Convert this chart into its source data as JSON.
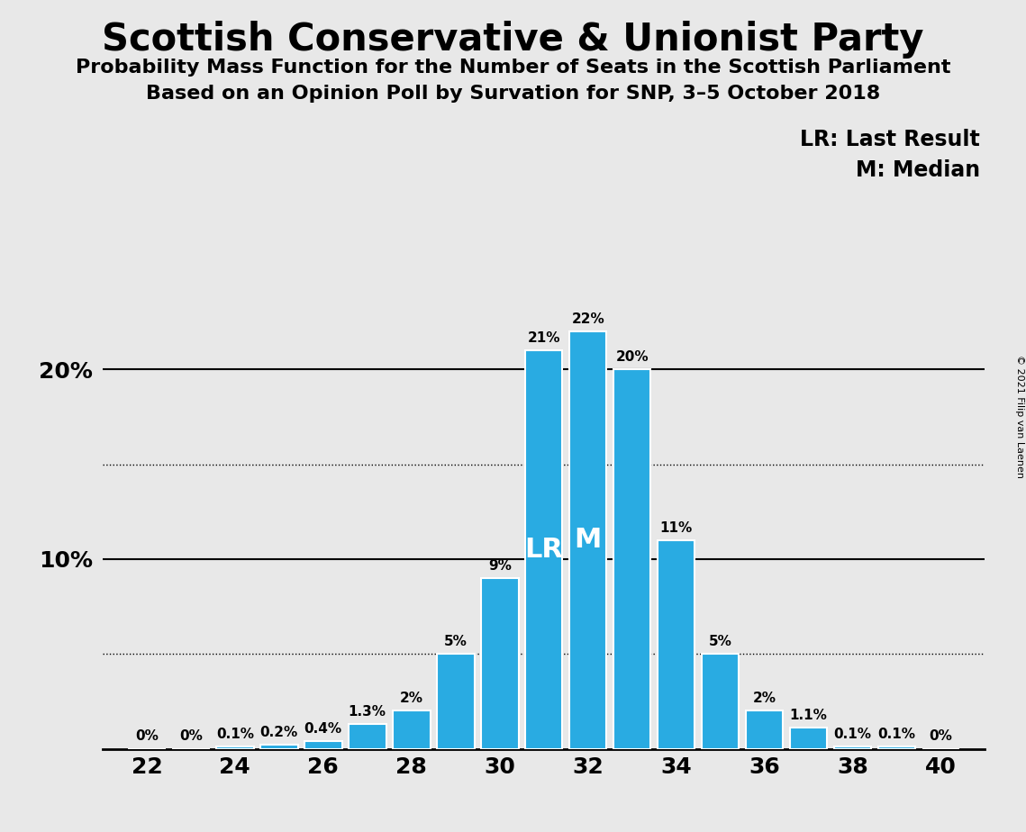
{
  "title": "Scottish Conservative & Unionist Party",
  "subtitle1": "Probability Mass Function for the Number of Seats in the Scottish Parliament",
  "subtitle2": "Based on an Opinion Poll by Survation for SNP, 3–5 October 2018",
  "copyright": "© 2021 Filip van Laenen",
  "seats": [
    22,
    23,
    24,
    25,
    26,
    27,
    28,
    29,
    30,
    31,
    32,
    33,
    34,
    35,
    36,
    37,
    38,
    39,
    40
  ],
  "values": [
    0.0,
    0.0,
    0.1,
    0.2,
    0.4,
    1.3,
    2.0,
    5.0,
    9.0,
    21.0,
    22.0,
    20.0,
    11.0,
    5.0,
    2.0,
    1.1,
    0.1,
    0.1,
    0.0
  ],
  "labels": [
    "0%",
    "0%",
    "0.1%",
    "0.2%",
    "0.4%",
    "1.3%",
    "2%",
    "5%",
    "9%",
    "21%",
    "22%",
    "20%",
    "11%",
    "5%",
    "2%",
    "1.1%",
    "0.1%",
    "0.1%",
    "0%"
  ],
  "bar_color": "#29ABE2",
  "background_color": "#E8E8E8",
  "last_result_seat": 31,
  "median_seat": 32,
  "lr_label": "LR",
  "m_label": "M",
  "legend_lr": "LR: Last Result",
  "legend_m": "M: Median",
  "xlim": [
    21,
    41
  ],
  "ylim": [
    0,
    25
  ],
  "xticks": [
    22,
    24,
    26,
    28,
    30,
    32,
    34,
    36,
    38,
    40
  ],
  "dotted_lines": [
    5,
    15
  ],
  "solid_lines": [
    10,
    20
  ],
  "bar_width": 0.85,
  "title_fontsize": 30,
  "subtitle_fontsize": 16,
  "tick_fontsize": 18,
  "label_fontsize": 11,
  "legend_fontsize": 17,
  "lr_m_fontsize": 22
}
